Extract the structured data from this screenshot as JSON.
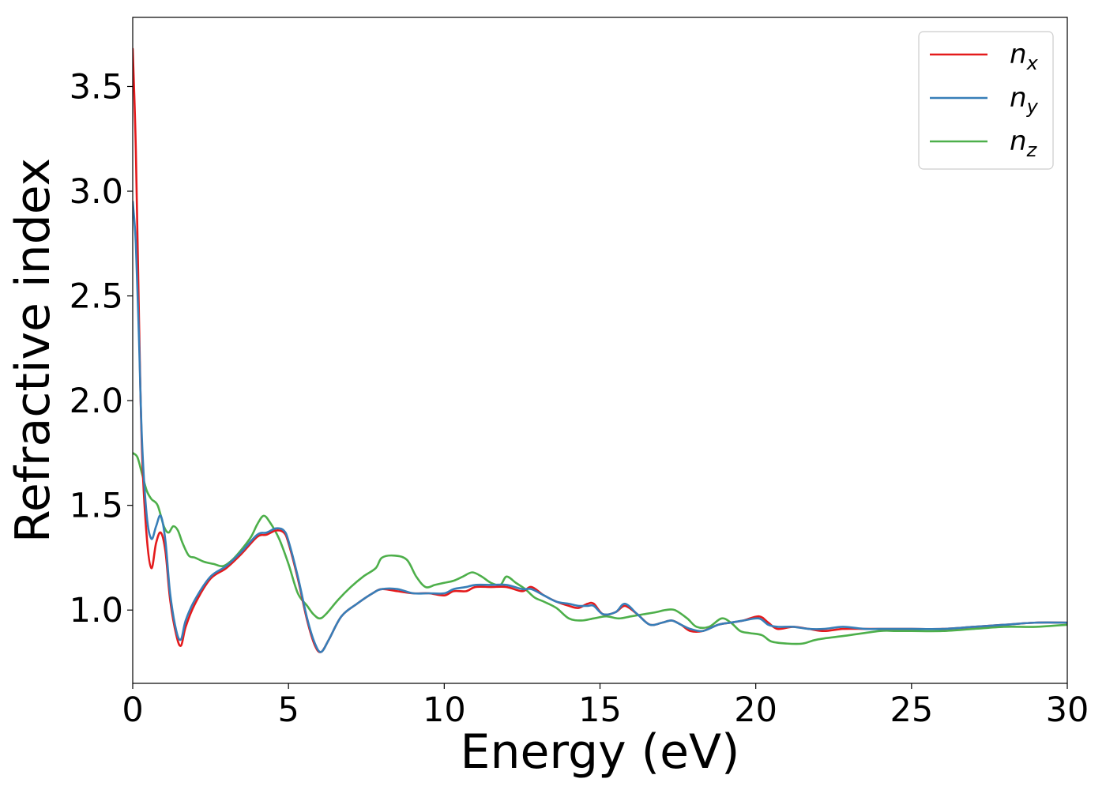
{
  "chart_data": {
    "type": "line",
    "title": "",
    "xlabel": "Energy (eV)",
    "ylabel": "Refractive index",
    "xlim": [
      0,
      30
    ],
    "ylim": [
      0.65,
      3.83
    ],
    "xticks": [
      0,
      5,
      10,
      15,
      20,
      25,
      30
    ],
    "xtick_labels": [
      "0",
      "5",
      "10",
      "15",
      "20",
      "25",
      "30"
    ],
    "yticks": [
      1.0,
      1.5,
      2.0,
      2.5,
      3.0,
      3.5
    ],
    "ytick_labels": [
      "1.0",
      "1.5",
      "2.0",
      "2.5",
      "3.0",
      "3.5"
    ],
    "grid": false,
    "legend_position": "top-right",
    "series": [
      {
        "name": "n_x",
        "label_main": "n",
        "label_sub": "x",
        "color": "#e41a1c",
        "x": [
          0,
          0.1,
          0.2,
          0.3,
          0.45,
          0.6,
          0.75,
          0.9,
          1.05,
          1.2,
          1.4,
          1.55,
          1.7,
          2.0,
          2.5,
          3.0,
          3.5,
          4.0,
          4.3,
          4.6,
          4.85,
          5.0,
          5.3,
          5.6,
          5.85,
          6.05,
          6.3,
          6.7,
          7.2,
          7.7,
          8.0,
          8.5,
          9.0,
          9.5,
          10.0,
          10.3,
          10.7,
          11.0,
          11.5,
          12.0,
          12.5,
          12.8,
          13.2,
          13.6,
          14.0,
          14.3,
          14.6,
          14.8,
          15.1,
          15.5,
          15.8,
          16.2,
          16.6,
          17.0,
          17.3,
          17.6,
          17.9,
          18.3,
          18.8,
          19.2,
          19.6,
          20.1,
          20.4,
          20.7,
          21.2,
          21.7,
          22.2,
          22.8,
          23.5,
          24.0,
          24.5,
          25.0,
          26.0,
          27.0,
          28.0,
          29.0,
          30.0
        ],
        "y": [
          3.68,
          3.2,
          2.4,
          1.75,
          1.35,
          1.2,
          1.32,
          1.37,
          1.28,
          1.05,
          0.88,
          0.83,
          0.92,
          1.03,
          1.15,
          1.2,
          1.27,
          1.35,
          1.36,
          1.38,
          1.37,
          1.32,
          1.15,
          0.95,
          0.83,
          0.8,
          0.86,
          0.97,
          1.03,
          1.08,
          1.1,
          1.09,
          1.08,
          1.08,
          1.07,
          1.09,
          1.09,
          1.11,
          1.11,
          1.11,
          1.09,
          1.11,
          1.07,
          1.04,
          1.02,
          1.01,
          1.03,
          1.03,
          0.98,
          0.99,
          1.02,
          0.98,
          0.93,
          0.94,
          0.95,
          0.93,
          0.9,
          0.9,
          0.93,
          0.94,
          0.95,
          0.97,
          0.94,
          0.91,
          0.92,
          0.91,
          0.9,
          0.91,
          0.91,
          0.91,
          0.91,
          0.91,
          0.91,
          0.92,
          0.93,
          0.94,
          0.94
        ]
      },
      {
        "name": "n_y",
        "label_main": "n",
        "label_sub": "y",
        "color": "#377eb8",
        "x": [
          0,
          0.1,
          0.2,
          0.3,
          0.45,
          0.6,
          0.75,
          0.9,
          1.05,
          1.2,
          1.4,
          1.55,
          1.7,
          2.0,
          2.5,
          3.0,
          3.5,
          4.0,
          4.3,
          4.6,
          4.85,
          5.0,
          5.3,
          5.6,
          5.85,
          6.05,
          6.3,
          6.7,
          7.2,
          7.7,
          8.0,
          8.5,
          9.0,
          9.5,
          10.0,
          10.3,
          10.7,
          11.0,
          11.5,
          12.0,
          12.5,
          12.8,
          13.2,
          13.6,
          14.0,
          14.3,
          14.6,
          14.8,
          15.1,
          15.5,
          15.8,
          16.2,
          16.6,
          17.0,
          17.3,
          17.6,
          17.9,
          18.3,
          18.8,
          19.2,
          19.6,
          20.1,
          20.4,
          20.7,
          21.2,
          21.7,
          22.2,
          22.8,
          23.5,
          24.0,
          24.5,
          25.0,
          26.0,
          27.0,
          28.0,
          29.0,
          30.0
        ],
        "y": [
          2.95,
          2.75,
          2.3,
          1.8,
          1.45,
          1.34,
          1.4,
          1.45,
          1.33,
          1.08,
          0.9,
          0.86,
          0.95,
          1.05,
          1.16,
          1.21,
          1.28,
          1.36,
          1.37,
          1.39,
          1.38,
          1.33,
          1.16,
          0.96,
          0.84,
          0.8,
          0.86,
          0.97,
          1.03,
          1.08,
          1.1,
          1.1,
          1.08,
          1.08,
          1.08,
          1.1,
          1.11,
          1.12,
          1.12,
          1.12,
          1.1,
          1.1,
          1.07,
          1.04,
          1.03,
          1.02,
          1.02,
          1.02,
          0.98,
          0.99,
          1.03,
          0.98,
          0.93,
          0.94,
          0.95,
          0.93,
          0.91,
          0.9,
          0.93,
          0.94,
          0.95,
          0.96,
          0.93,
          0.92,
          0.92,
          0.91,
          0.91,
          0.92,
          0.91,
          0.91,
          0.91,
          0.91,
          0.91,
          0.92,
          0.93,
          0.94,
          0.94
        ]
      },
      {
        "name": "n_z",
        "label_main": "n",
        "label_sub": "z",
        "color": "#4daf4a",
        "x": [
          0,
          0.15,
          0.3,
          0.45,
          0.6,
          0.8,
          1.0,
          1.15,
          1.3,
          1.45,
          1.6,
          1.8,
          2.0,
          2.3,
          2.6,
          2.9,
          3.2,
          3.5,
          3.8,
          4.0,
          4.2,
          4.4,
          4.7,
          5.0,
          5.3,
          5.6,
          5.8,
          6.0,
          6.2,
          6.6,
          7.0,
          7.4,
          7.8,
          8.0,
          8.4,
          8.8,
          9.1,
          9.4,
          9.7,
          10.0,
          10.3,
          10.6,
          10.9,
          11.2,
          11.5,
          11.8,
          12.0,
          12.3,
          12.6,
          12.9,
          13.2,
          13.6,
          14.0,
          14.4,
          14.8,
          15.2,
          15.6,
          16.0,
          16.4,
          16.8,
          17.1,
          17.4,
          17.8,
          18.1,
          18.5,
          18.9,
          19.2,
          19.5,
          19.8,
          20.2,
          20.5,
          21.0,
          21.5,
          22.0,
          23.0,
          24.0,
          24.5,
          25.0,
          26.0,
          27.0,
          28.0,
          29.0,
          30.0
        ],
        "y": [
          1.75,
          1.73,
          1.65,
          1.57,
          1.53,
          1.5,
          1.4,
          1.37,
          1.4,
          1.38,
          1.32,
          1.26,
          1.25,
          1.23,
          1.22,
          1.21,
          1.24,
          1.29,
          1.35,
          1.41,
          1.45,
          1.42,
          1.34,
          1.22,
          1.08,
          1.02,
          0.98,
          0.96,
          0.98,
          1.05,
          1.11,
          1.16,
          1.2,
          1.25,
          1.26,
          1.24,
          1.16,
          1.11,
          1.12,
          1.13,
          1.14,
          1.16,
          1.18,
          1.16,
          1.13,
          1.12,
          1.16,
          1.13,
          1.1,
          1.06,
          1.04,
          1.01,
          0.96,
          0.95,
          0.96,
          0.97,
          0.96,
          0.97,
          0.98,
          0.99,
          1.0,
          1.0,
          0.96,
          0.92,
          0.92,
          0.96,
          0.94,
          0.9,
          0.89,
          0.88,
          0.85,
          0.84,
          0.84,
          0.86,
          0.88,
          0.9,
          0.9,
          0.9,
          0.9,
          0.91,
          0.92,
          0.92,
          0.93
        ]
      }
    ]
  }
}
